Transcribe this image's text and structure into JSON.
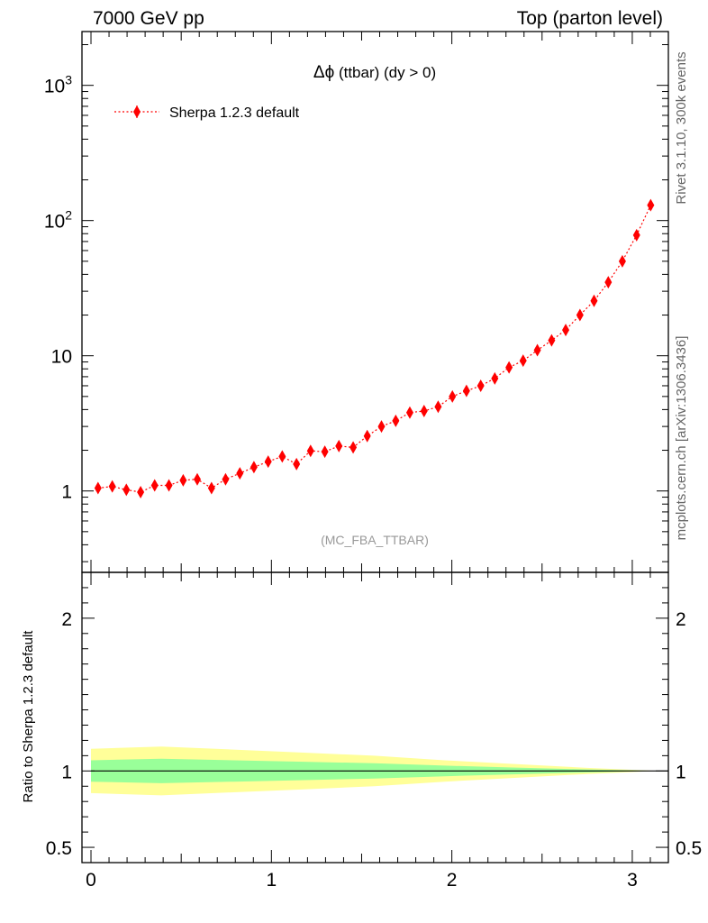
{
  "header": {
    "left": "7000 GeV pp",
    "right": "Top (parton level)"
  },
  "side_labels": {
    "rivet": "Rivet 3.1.10,  300k events",
    "mcplots": "mcplots.cern.ch [arXiv:1306.3436]"
  },
  "chart_data": [
    {
      "panel": "main",
      "type": "scatter",
      "title_prefix": "Δϕ",
      "title_rest": " (ttbar) (dy > 0)",
      "analysis_label": "(MC_FBA_TTBAR)",
      "yscale": "log",
      "ylim": [
        0.25,
        2500
      ],
      "xlim": [
        -0.05,
        3.2
      ],
      "y_ticks": [
        {
          "value": 1,
          "label": "1"
        },
        {
          "value": 10,
          "label": "10"
        },
        {
          "value": 100,
          "label": "10",
          "exp": "2"
        },
        {
          "value": 1000,
          "label": "10",
          "exp": "3"
        }
      ],
      "legend": {
        "placement": "top-left"
      },
      "series": [
        {
          "name": "Sherpa 1.2.3 default",
          "color": "#ff0000",
          "marker": "diamond",
          "line": "dotted",
          "x": [
            0.039,
            0.118,
            0.196,
            0.275,
            0.353,
            0.432,
            0.511,
            0.589,
            0.668,
            0.746,
            0.825,
            0.903,
            0.982,
            1.06,
            1.139,
            1.217,
            1.296,
            1.374,
            1.453,
            1.531,
            1.61,
            1.689,
            1.767,
            1.846,
            1.924,
            2.003,
            2.081,
            2.16,
            2.238,
            2.317,
            2.395,
            2.474,
            2.553,
            2.631,
            2.71,
            2.788,
            2.867,
            2.945,
            3.024,
            3.102
          ],
          "y": [
            1.05,
            1.08,
            1.02,
            0.98,
            1.1,
            1.1,
            1.2,
            1.22,
            1.05,
            1.22,
            1.35,
            1.5,
            1.65,
            1.8,
            1.58,
            1.98,
            1.95,
            2.15,
            2.1,
            2.55,
            3.0,
            3.3,
            3.8,
            3.9,
            4.2,
            5.0,
            5.5,
            6.0,
            6.8,
            8.2,
            9.2,
            11.0,
            13.0,
            15.5,
            20.0,
            25.5,
            35.0,
            50.0,
            78.0,
            130.0
          ],
          "yerr": [
            0.07,
            0.07,
            0.07,
            0.07,
            0.07,
            0.07,
            0.07,
            0.07,
            0.07,
            0.08,
            0.08,
            0.08,
            0.09,
            0.1,
            0.09,
            0.1,
            0.1,
            0.11,
            0.11,
            0.12,
            0.14,
            0.15,
            0.17,
            0.17,
            0.18,
            0.2,
            0.22,
            0.24,
            0.26,
            0.3,
            0.33,
            0.38,
            0.43,
            0.5,
            0.6,
            0.75,
            0.95,
            1.3,
            1.9,
            3.0
          ]
        }
      ]
    },
    {
      "panel": "ratio",
      "type": "area",
      "ylabel": "Ratio to Sherpa 1.2.3 default",
      "ylim": [
        0.4,
        2.3
      ],
      "xlim": [
        -0.05,
        3.2
      ],
      "y_ticks": [
        {
          "value": 0.5,
          "label": "0.5"
        },
        {
          "value": 1,
          "label": "1"
        },
        {
          "value": 2,
          "label": "2"
        }
      ],
      "x_ticks": [
        {
          "value": 0,
          "label": "0"
        },
        {
          "value": 1,
          "label": "1"
        },
        {
          "value": 2,
          "label": "2"
        },
        {
          "value": 3,
          "label": "3"
        }
      ],
      "reference_line": 1,
      "bands": [
        {
          "name": "2-sigma",
          "color": "#ffff99",
          "x": [
            0.0,
            0.39,
            0.79,
            1.18,
            1.57,
            1.96,
            2.36,
            2.75,
            3.14
          ],
          "lower": [
            0.855,
            0.84,
            0.86,
            0.88,
            0.9,
            0.93,
            0.955,
            0.98,
            1.0
          ],
          "upper": [
            1.145,
            1.16,
            1.14,
            1.12,
            1.1,
            1.07,
            1.045,
            1.02,
            1.0
          ]
        },
        {
          "name": "1-sigma",
          "color": "#99ff99",
          "x": [
            0.0,
            0.39,
            0.79,
            1.18,
            1.57,
            1.96,
            2.36,
            2.75,
            3.14
          ],
          "lower": [
            0.93,
            0.92,
            0.93,
            0.94,
            0.95,
            0.965,
            0.978,
            0.99,
            1.0
          ],
          "upper": [
            1.07,
            1.08,
            1.07,
            1.06,
            1.05,
            1.035,
            1.022,
            1.01,
            1.0
          ]
        }
      ]
    }
  ]
}
